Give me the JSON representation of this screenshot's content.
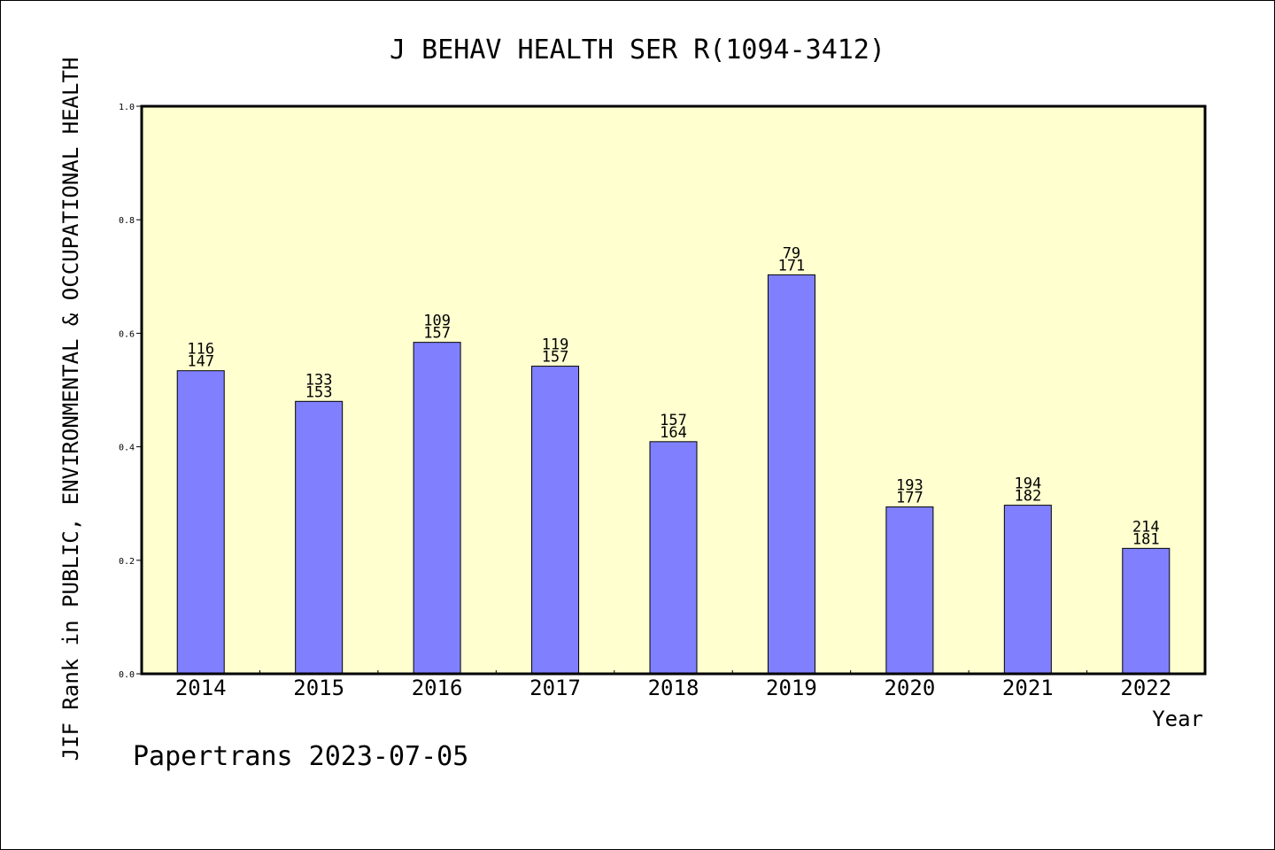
{
  "chart_data": {
    "type": "bar",
    "title": "J BEHAV HEALTH SER R(1094-3412)",
    "ylabel": "JIF Rank in PUBLIC, ENVIRONMENTAL & OCCUPATIONAL HEALTH",
    "xlabel": "Year",
    "ylim": [
      0,
      1.0
    ],
    "yticks": [
      "0.0",
      "0.2",
      "0.4",
      "0.6",
      "0.8",
      "1.0"
    ],
    "categories": [
      "2014",
      "2015",
      "2016",
      "2017",
      "2018",
      "2019",
      "2020",
      "2021",
      "2022"
    ],
    "values": [
      0.534,
      0.48,
      0.584,
      0.542,
      0.409,
      0.703,
      0.294,
      0.297,
      0.221
    ],
    "labels_top": [
      "116",
      "133",
      "109",
      "119",
      "157",
      "79",
      "193",
      "194",
      "214"
    ],
    "labels_bottom": [
      "147",
      "153",
      "157",
      "157",
      "164",
      "171",
      "177",
      "182",
      "181"
    ],
    "grid": false,
    "colors": {
      "plot_bg": "#ffffd0",
      "bar": "#8080ff",
      "axis": "#000000"
    }
  },
  "footer": "Papertrans 2023-07-05"
}
